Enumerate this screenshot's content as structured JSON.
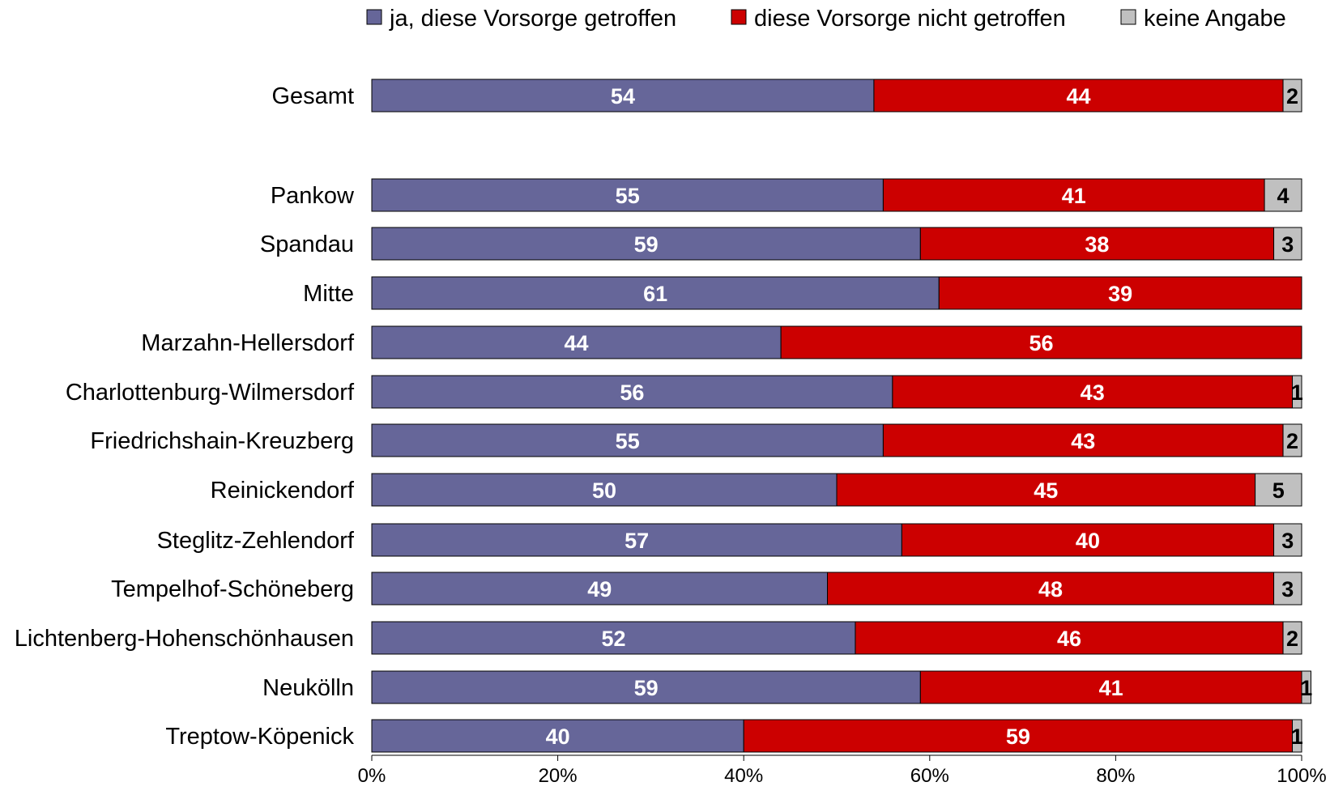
{
  "chart_data": {
    "type": "bar",
    "orientation": "horizontal",
    "stacked": true,
    "title": "",
    "xlabel": "",
    "ylabel": "",
    "xlim": [
      0,
      100
    ],
    "x_ticks": [
      "0%",
      "20%",
      "40%",
      "60%",
      "80%",
      "100%"
    ],
    "legend_position": "top",
    "grid": false,
    "categories": [
      "Gesamt",
      "Pankow",
      "Spandau",
      "Mitte",
      "Marzahn-Hellersdorf",
      "Charlottenburg-Wilmersdorf",
      "Friedrichshain-Kreuzberg",
      "Reinickendorf",
      "Steglitz-Zehlendorf",
      "Tempelhof-Schöneberg",
      "Lichtenberg-Hohenschönhausen",
      "Neukölln",
      "Treptow-Köpenick"
    ],
    "series": [
      {
        "name": "ja, diese Vorsorge getroffen",
        "color": "#666699",
        "label_color": "#ffffff",
        "values": [
          54,
          55,
          59,
          61,
          44,
          56,
          55,
          50,
          57,
          49,
          52,
          59,
          40
        ]
      },
      {
        "name": "diese Vorsorge nicht getroffen",
        "color": "#cc0000",
        "label_color": "#ffffff",
        "values": [
          44,
          41,
          38,
          39,
          56,
          43,
          43,
          45,
          40,
          48,
          46,
          41,
          59
        ]
      },
      {
        "name": "keine Angabe",
        "color": "#c0c0c0",
        "label_color": "#000000",
        "values": [
          2,
          4,
          3,
          0,
          0,
          1,
          2,
          5,
          3,
          3,
          2,
          1,
          1
        ]
      }
    ]
  }
}
